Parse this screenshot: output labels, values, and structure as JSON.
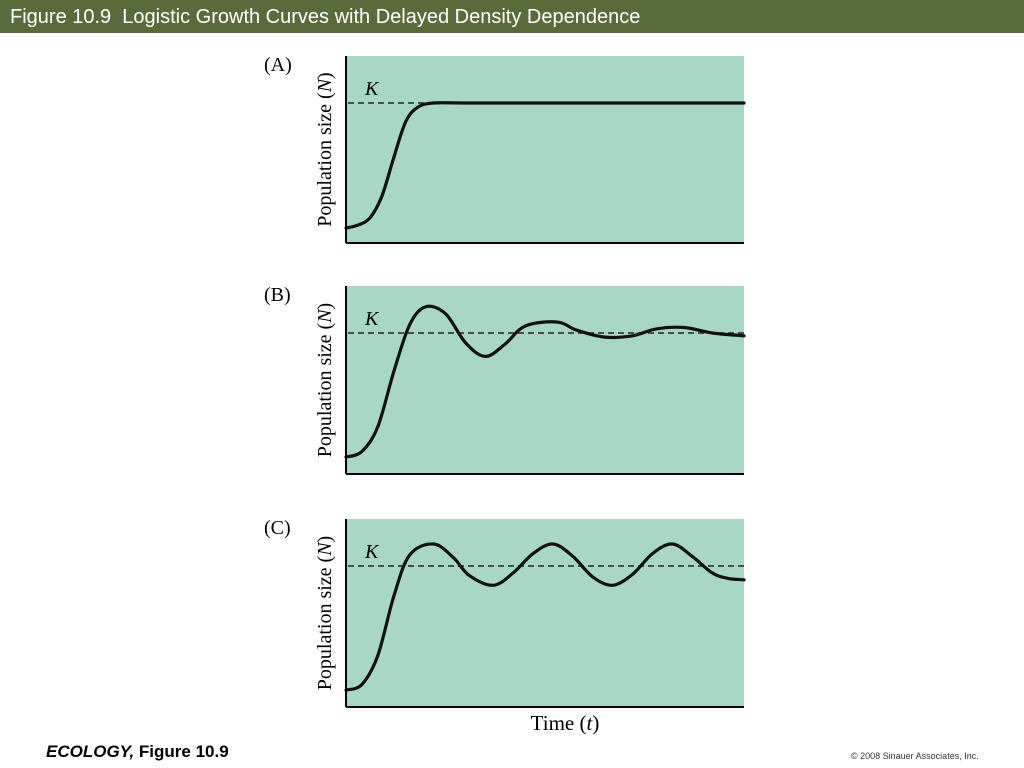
{
  "slide": {
    "title": "Figure 10.9  Logistic Growth Curves with Delayed Density Dependence",
    "footer_book": "ECOLOGY,",
    "footer_figure": "Figure 10.9",
    "copyright": "© 2008 Sinauer Associates, Inc.",
    "colors": {
      "title_bar": "#5a6b3b",
      "plot_background": "#a8d8c4",
      "curve": "#111111"
    }
  },
  "chart_data": {
    "type": "line",
    "shared_xlabel_text": "Time (",
    "shared_xlabel_var": "t",
    "shared_xlabel_close": ")",
    "ylabel_text": "Population size (",
    "ylabel_var": "N",
    "ylabel_close": ")",
    "reference_line_label": "K",
    "reference_line_style": "dashed",
    "note": "",
    "panels": [
      {
        "label": "(A)",
        "curve": [
          {
            "x": 0.0,
            "y": 0.13
          },
          {
            "x": 0.03,
            "y": 0.15
          },
          {
            "x": 0.06,
            "y": 0.2
          },
          {
            "x": 0.09,
            "y": 0.35
          },
          {
            "x": 0.12,
            "y": 0.62
          },
          {
            "x": 0.15,
            "y": 0.87
          },
          {
            "x": 0.18,
            "y": 0.97
          },
          {
            "x": 0.22,
            "y": 1.0
          },
          {
            "x": 0.3,
            "y": 1.0
          },
          {
            "x": 0.6,
            "y": 1.0
          },
          {
            "x": 1.0,
            "y": 1.0
          }
        ]
      },
      {
        "label": "(B)",
        "curve": [
          {
            "x": 0.0,
            "y": 0.1
          },
          {
            "x": 0.04,
            "y": 0.14
          },
          {
            "x": 0.08,
            "y": 0.32
          },
          {
            "x": 0.12,
            "y": 0.72
          },
          {
            "x": 0.16,
            "y": 1.06
          },
          {
            "x": 0.2,
            "y": 1.19
          },
          {
            "x": 0.25,
            "y": 1.14
          },
          {
            "x": 0.3,
            "y": 0.93
          },
          {
            "x": 0.35,
            "y": 0.83
          },
          {
            "x": 0.4,
            "y": 0.92
          },
          {
            "x": 0.45,
            "y": 1.05
          },
          {
            "x": 0.53,
            "y": 1.08
          },
          {
            "x": 0.58,
            "y": 1.02
          },
          {
            "x": 0.65,
            "y": 0.97
          },
          {
            "x": 0.72,
            "y": 0.98
          },
          {
            "x": 0.78,
            "y": 1.03
          },
          {
            "x": 0.85,
            "y": 1.04
          },
          {
            "x": 0.92,
            "y": 1.0
          },
          {
            "x": 1.0,
            "y": 0.98
          }
        ]
      },
      {
        "label": "(C)",
        "curve": [
          {
            "x": 0.0,
            "y": 0.1
          },
          {
            "x": 0.04,
            "y": 0.14
          },
          {
            "x": 0.08,
            "y": 0.35
          },
          {
            "x": 0.12,
            "y": 0.78
          },
          {
            "x": 0.16,
            "y": 1.08
          },
          {
            "x": 0.22,
            "y": 1.16
          },
          {
            "x": 0.27,
            "y": 1.06
          },
          {
            "x": 0.31,
            "y": 0.93
          },
          {
            "x": 0.37,
            "y": 0.86
          },
          {
            "x": 0.42,
            "y": 0.95
          },
          {
            "x": 0.47,
            "y": 1.09
          },
          {
            "x": 0.52,
            "y": 1.16
          },
          {
            "x": 0.57,
            "y": 1.07
          },
          {
            "x": 0.62,
            "y": 0.92
          },
          {
            "x": 0.67,
            "y": 0.86
          },
          {
            "x": 0.72,
            "y": 0.94
          },
          {
            "x": 0.77,
            "y": 1.09
          },
          {
            "x": 0.82,
            "y": 1.16
          },
          {
            "x": 0.87,
            "y": 1.07
          },
          {
            "x": 0.92,
            "y": 0.95
          },
          {
            "x": 0.96,
            "y": 0.91
          },
          {
            "x": 1.0,
            "y": 0.9
          }
        ]
      }
    ]
  }
}
